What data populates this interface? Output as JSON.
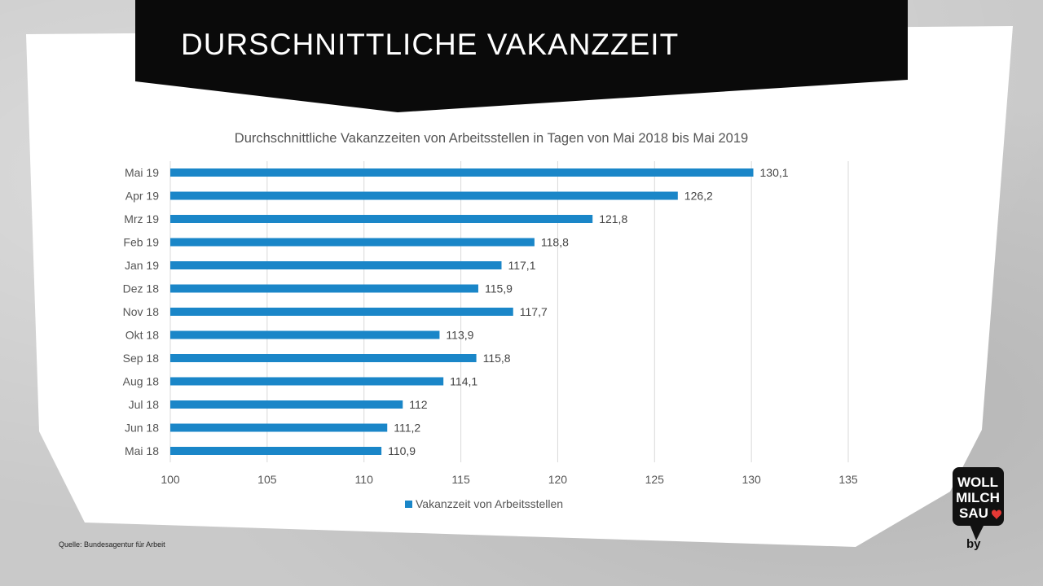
{
  "banner": {
    "title": "DURSCHNITTLICHE VAKANZZEIT"
  },
  "chart_data": {
    "type": "bar",
    "orientation": "horizontal",
    "title": "Durchschnittliche Vakanzzeiten von Arbeitsstellen in Tagen von Mai 2018 bis Mai 2019",
    "categories": [
      "Mai 19",
      "Apr 19",
      "Mrz 19",
      "Feb 19",
      "Jan 19",
      "Dez 18",
      "Nov 18",
      "Okt 18",
      "Sep 18",
      "Aug 18",
      "Jul 18",
      "Jun 18",
      "Mai 18"
    ],
    "series": [
      {
        "name": "Vakanzzeit von Arbeitsstellen",
        "values": [
          130.1,
          126.2,
          121.8,
          118.8,
          117.1,
          115.9,
          117.7,
          113.9,
          115.8,
          114.1,
          112,
          111.2,
          110.9
        ],
        "labels": [
          "130,1",
          "126,2",
          "121,8",
          "118,8",
          "117,1",
          "115,9",
          "117,7",
          "113,9",
          "115,8",
          "114,1",
          "112",
          "111,2",
          "110,9"
        ]
      }
    ],
    "xlim": [
      100,
      135
    ],
    "xticks": [
      100,
      105,
      110,
      115,
      120,
      125,
      130,
      135
    ],
    "grid": true,
    "legend": "bottom",
    "bar_color": "#1a86c8"
  },
  "source": "Quelle: Bundesagentur für Arbeit",
  "logo": {
    "lines": [
      "WOLL",
      "MILCH",
      "SAU"
    ],
    "byline": "by",
    "heart_color": "#e53935"
  }
}
